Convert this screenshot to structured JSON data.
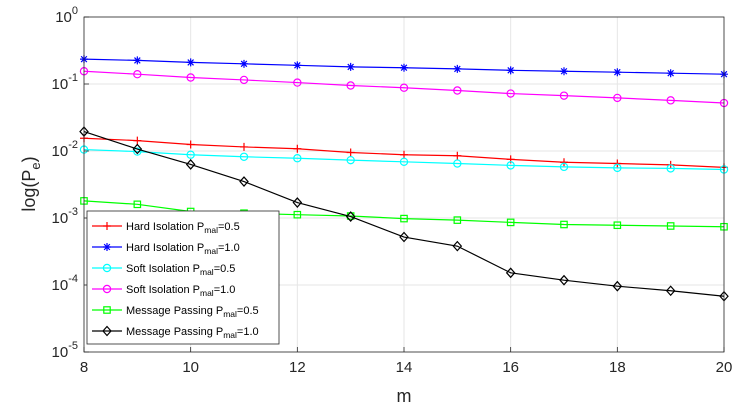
{
  "chart_data": {
    "type": "line",
    "xlabel": "m",
    "ylabel_main": "log(P",
    "ylabel_sub": "e",
    "ylabel_close": ")",
    "x": [
      8,
      9,
      10,
      11,
      12,
      13,
      14,
      15,
      16,
      17,
      18,
      19,
      20
    ],
    "xlim": [
      8,
      20
    ],
    "xticks": [
      8,
      10,
      12,
      14,
      16,
      18,
      20
    ],
    "ylim": [
      1e-05,
      1
    ],
    "yscale": "log",
    "yticks": [
      {
        "value": 1e-05,
        "base": "10",
        "exp": "-5"
      },
      {
        "value": 0.0001,
        "base": "10",
        "exp": "-4"
      },
      {
        "value": 0.001,
        "base": "10",
        "exp": "-3"
      },
      {
        "value": 0.01,
        "base": "10",
        "exp": "-2"
      },
      {
        "value": 0.1,
        "base": "10",
        "exp": "-1"
      },
      {
        "value": 1,
        "base": "10",
        "exp": "0"
      }
    ],
    "grid": true,
    "legend_position": "bottom-left",
    "series": [
      {
        "name_main": "Hard Isolation P",
        "name_sub": "mal",
        "name_tail": "=0.5",
        "color": "#ff0000",
        "marker": "plus",
        "values": [
          0.0155,
          0.0143,
          0.0125,
          0.0115,
          0.0108,
          0.0095,
          0.0088,
          0.0085,
          0.0075,
          0.0068,
          0.0065,
          0.0062,
          0.0057
        ]
      },
      {
        "name_main": "Hard Isolation P",
        "name_sub": "mal",
        "name_tail": "=1.0",
        "color": "#0000ff",
        "marker": "asterisk",
        "values": [
          0.235,
          0.225,
          0.21,
          0.2,
          0.19,
          0.18,
          0.175,
          0.168,
          0.16,
          0.155,
          0.15,
          0.145,
          0.14
        ]
      },
      {
        "name_main": "Soft Isolation P",
        "name_sub": "mal",
        "name_tail": "=0.5",
        "color": "#00ffff",
        "marker": "circle",
        "values": [
          0.0105,
          0.0098,
          0.0088,
          0.0082,
          0.0078,
          0.0073,
          0.0069,
          0.0065,
          0.0061,
          0.0058,
          0.0056,
          0.0055,
          0.0053
        ]
      },
      {
        "name_main": "Soft Isolation P",
        "name_sub": "mal",
        "name_tail": "=1.0",
        "color": "#ff00ff",
        "marker": "circle",
        "values": [
          0.155,
          0.14,
          0.125,
          0.115,
          0.105,
          0.095,
          0.088,
          0.08,
          0.072,
          0.067,
          0.062,
          0.057,
          0.052
        ]
      },
      {
        "name_main": "Message Passing P",
        "name_sub": "mal",
        "name_tail": "=0.5",
        "color": "#00ff00",
        "marker": "square",
        "values": [
          0.0018,
          0.0016,
          0.00125,
          0.00118,
          0.00112,
          0.00107,
          0.00098,
          0.00093,
          0.00086,
          0.0008,
          0.00078,
          0.00076,
          0.00074
        ]
      },
      {
        "name_main": "Message Passing P",
        "name_sub": "mal",
        "name_tail": "=1.0",
        "color": "#000000",
        "marker": "diamond",
        "values": [
          0.0195,
          0.0107,
          0.0063,
          0.0035,
          0.0017,
          0.00105,
          0.00052,
          0.00038,
          0.000152,
          0.000118,
          9.6e-05,
          8.2e-05,
          6.8e-05
        ]
      }
    ]
  }
}
